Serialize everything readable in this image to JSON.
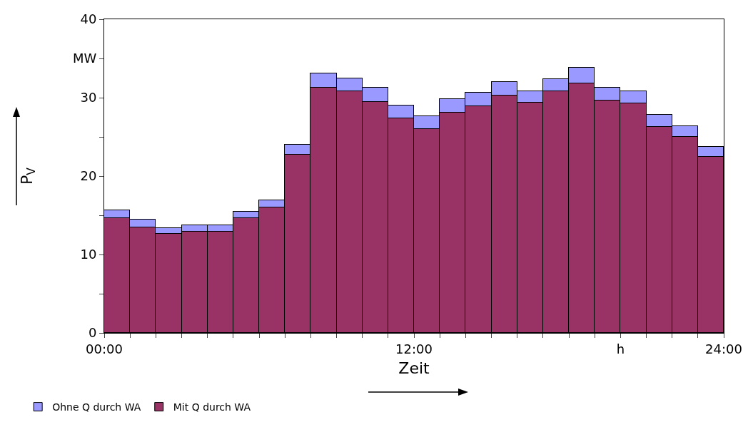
{
  "chart_data": {
    "type": "bar",
    "stacked": true,
    "xlabel": "Zeit",
    "ylabel": "P$_{V}$",
    "x": [
      0.5,
      1.5,
      2.5,
      3.5,
      4.5,
      5.5,
      6.5,
      7.5,
      8.5,
      9.5,
      10.5,
      11.5,
      12.5,
      13.5,
      14.5,
      15.5,
      16.5,
      17.5,
      18.5,
      19.5,
      20.5,
      21.5,
      22.5,
      23.5
    ],
    "series": [
      {
        "name": "Mit Q durch WA",
        "color": "#993366",
        "values": [
          14.6,
          13.5,
          12.6,
          12.9,
          12.9,
          14.6,
          16.0,
          22.7,
          31.3,
          30.8,
          29.5,
          27.4,
          26.0,
          28.1,
          28.9,
          30.3,
          29.4,
          30.8,
          31.8,
          29.6,
          29.3,
          26.3,
          25.0,
          22.5
        ]
      },
      {
        "name": "Ohne Q durch WA",
        "color": "#9999ff",
        "values": [
          1.0,
          1.0,
          0.8,
          0.8,
          0.8,
          0.9,
          0.9,
          1.3,
          1.8,
          1.7,
          1.8,
          1.6,
          1.6,
          1.7,
          1.7,
          1.7,
          1.4,
          1.6,
          2.0,
          1.7,
          1.5,
          1.5,
          1.4,
          1.2
        ]
      }
    ],
    "xlim": [
      0,
      24
    ],
    "xticks": [
      {
        "value": 0,
        "label": "00:00"
      },
      {
        "value": 1,
        "label": null
      },
      {
        "value": 2,
        "label": null
      },
      {
        "value": 3,
        "label": null
      },
      {
        "value": 4,
        "label": null
      },
      {
        "value": 5,
        "label": null
      },
      {
        "value": 6,
        "label": null
      },
      {
        "value": 7,
        "label": null
      },
      {
        "value": 8,
        "label": null
      },
      {
        "value": 9,
        "label": null
      },
      {
        "value": 10,
        "label": null
      },
      {
        "value": 11,
        "label": null
      },
      {
        "value": 12,
        "label": "12:00"
      },
      {
        "value": 13,
        "label": null
      },
      {
        "value": 14,
        "label": null
      },
      {
        "value": 15,
        "label": null
      },
      {
        "value": 16,
        "label": null
      },
      {
        "value": 17,
        "label": null
      },
      {
        "value": 18,
        "label": null
      },
      {
        "value": 19,
        "label": null
      },
      {
        "value": 20,
        "label": "h"
      },
      {
        "value": 21,
        "label": null
      },
      {
        "value": 22,
        "label": null
      },
      {
        "value": 23,
        "label": null
      },
      {
        "value": 24,
        "label": "24:00"
      }
    ],
    "ylim": [
      0,
      40
    ],
    "yticks": [
      0,
      {
        "value": 5,
        "label": null
      },
      10,
      {
        "value": 15,
        "label": null
      },
      20,
      {
        "value": 25,
        "label": null
      },
      30,
      {
        "value": 35,
        "label": "MW"
      },
      40
    ],
    "grid": false,
    "legend": "bottom left"
  }
}
